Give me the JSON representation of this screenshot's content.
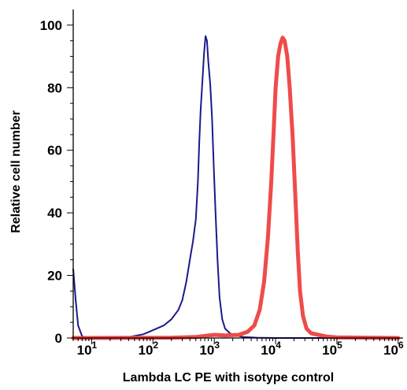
{
  "chart_data": {
    "type": "line",
    "title": "",
    "xlabel": "Lambda LC PE with isotype control",
    "ylabel": "Relative cell number",
    "x_scale": "log",
    "xlim": [
      5,
      1200000
    ],
    "ylim": [
      0,
      105
    ],
    "grid": false,
    "legend": "none",
    "x_ticks": [
      {
        "value": 10,
        "base": "10",
        "exp": "1"
      },
      {
        "value": 100,
        "base": "10",
        "exp": "2"
      },
      {
        "value": 1000,
        "base": "10",
        "exp": "3"
      },
      {
        "value": 10000,
        "base": "10",
        "exp": "4"
      },
      {
        "value": 100000,
        "base": "10",
        "exp": "5"
      },
      {
        "value": 1000000,
        "base": "10",
        "exp": "6"
      }
    ],
    "y_ticks": [
      {
        "value": 0,
        "label": "0"
      },
      {
        "value": 20,
        "label": "20"
      },
      {
        "value": 40,
        "label": "40"
      },
      {
        "value": 60,
        "label": "60"
      },
      {
        "value": 80,
        "label": "80"
      },
      {
        "value": 100,
        "label": "100"
      }
    ],
    "series": [
      {
        "color": "#1a1a8c",
        "points": [
          [
            5,
            22
          ],
          [
            5.5,
            12
          ],
          [
            6,
            4
          ],
          [
            7,
            0.5
          ],
          [
            10,
            0
          ],
          [
            20,
            0.1
          ],
          [
            40,
            0.3
          ],
          [
            70,
            1.2
          ],
          [
            100,
            2.5
          ],
          [
            150,
            4
          ],
          [
            200,
            6
          ],
          [
            260,
            9
          ],
          [
            300,
            12
          ],
          [
            350,
            18
          ],
          [
            400,
            25
          ],
          [
            450,
            31
          ],
          [
            500,
            38
          ],
          [
            540,
            50
          ],
          [
            570,
            63
          ],
          [
            600,
            73
          ],
          [
            640,
            82
          ],
          [
            680,
            91
          ],
          [
            720,
            96.5
          ],
          [
            760,
            95
          ],
          [
            800,
            88
          ],
          [
            860,
            81
          ],
          [
            920,
            70
          ],
          [
            980,
            55
          ],
          [
            1050,
            40
          ],
          [
            1130,
            25
          ],
          [
            1220,
            13
          ],
          [
            1350,
            6
          ],
          [
            1500,
            3
          ],
          [
            1800,
            1.5
          ],
          [
            2200,
            0.8
          ],
          [
            3000,
            0.3
          ],
          [
            5000,
            0.1
          ],
          [
            10000,
            0
          ],
          [
            1000000,
            0
          ]
        ]
      },
      {
        "color": "#ef4b4b",
        "points": [
          [
            5,
            0
          ],
          [
            200,
            0.1
          ],
          [
            500,
            0.3
          ],
          [
            800,
            0.8
          ],
          [
            1000,
            1
          ],
          [
            1500,
            0.8
          ],
          [
            2500,
            1
          ],
          [
            3500,
            2
          ],
          [
            4500,
            4
          ],
          [
            5500,
            9
          ],
          [
            6500,
            18
          ],
          [
            7500,
            32
          ],
          [
            8500,
            50
          ],
          [
            9300,
            66
          ],
          [
            10000,
            80
          ],
          [
            11000,
            90
          ],
          [
            12000,
            94
          ],
          [
            13000,
            96
          ],
          [
            14000,
            95
          ],
          [
            15500,
            90
          ],
          [
            17000,
            80
          ],
          [
            19000,
            64
          ],
          [
            21000,
            45
          ],
          [
            23000,
            28
          ],
          [
            25000,
            15
          ],
          [
            28000,
            7
          ],
          [
            32000,
            3
          ],
          [
            38000,
            1.5
          ],
          [
            50000,
            1
          ],
          [
            70000,
            0.4
          ],
          [
            100000,
            0.2
          ],
          [
            1000000,
            0
          ]
        ]
      }
    ]
  }
}
